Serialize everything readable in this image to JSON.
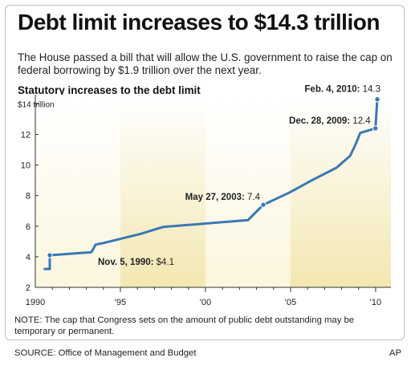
{
  "headline": "Debt limit increases to $14.3 trillion",
  "subtitle": "The House passed a bill that will allow the U.S. government to raise the cap on federal borrowing by $1.9 trillion over the next year.",
  "note": "NOTE: The cap that Congress sets on the amount of public debt outstanding may be temporary or permanent.",
  "source": "SOURCE: Office of Management and Budget",
  "credit": "AP",
  "colors": {
    "line": "#3a78b5",
    "band_light": "#fbf6de",
    "band_dark": "#f3e7b1",
    "axis": "#333333"
  },
  "chart_data": {
    "type": "line",
    "title": "Statutory increases to the debt limit",
    "ylabel": "$14 trillion",
    "ylim": [
      2,
      14.6
    ],
    "xlim": [
      1990,
      2010.9
    ],
    "y_ticks": [
      2,
      4,
      6,
      8,
      10,
      12,
      14
    ],
    "y_tick_labels": [
      "2",
      "4",
      "6",
      "8",
      "10",
      "12",
      "$14 trillion"
    ],
    "x_ticks": [
      1990,
      1995,
      2000,
      2005,
      2010
    ],
    "x_tick_labels": [
      "1990",
      "'95",
      "'00",
      "'05",
      "'10"
    ],
    "grid": false,
    "step_points": [
      [
        1990.55,
        3.2
      ],
      [
        1990.85,
        3.2
      ],
      [
        1990.85,
        4.1
      ],
      [
        1993.3,
        4.3
      ],
      [
        1993.55,
        4.8
      ],
      [
        1994.0,
        4.9
      ],
      [
        1996.2,
        5.5
      ],
      [
        1997.5,
        5.95
      ],
      [
        2002.5,
        6.4
      ],
      [
        2003.4,
        7.4
      ],
      [
        2004.9,
        8.18
      ],
      [
        2006.2,
        8.97
      ],
      [
        2007.7,
        9.82
      ],
      [
        2008.5,
        10.6
      ],
      [
        2008.8,
        11.3
      ],
      [
        2009.1,
        12.1
      ],
      [
        2009.99,
        12.4
      ],
      [
        2010.1,
        14.3
      ]
    ],
    "annotations": [
      {
        "label": "Nov. 5, 1990:",
        "value": "$4.1",
        "x": 1990.85,
        "y": 4.1
      },
      {
        "label": "May 27, 2003:",
        "value": "7.4",
        "x": 2003.4,
        "y": 7.4
      },
      {
        "label": "Dec. 28, 2009:",
        "value": "12.4",
        "x": 2009.99,
        "y": 12.4
      },
      {
        "label": "Feb. 4, 2010:",
        "value": "14.3",
        "x": 2010.1,
        "y": 14.3
      }
    ]
  }
}
